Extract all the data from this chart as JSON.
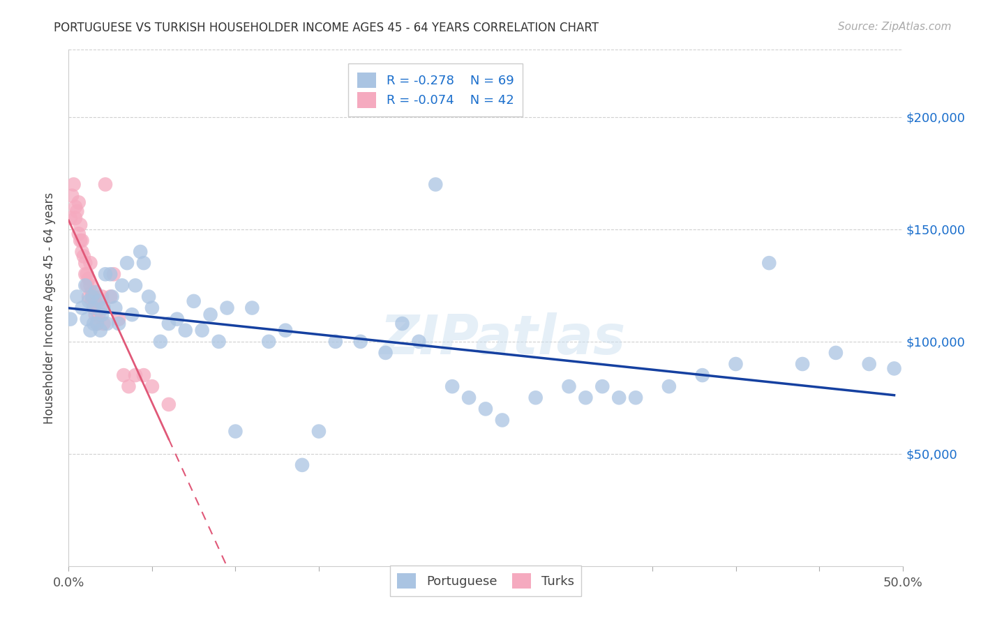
{
  "title": "PORTUGUESE VS TURKISH HOUSEHOLDER INCOME AGES 45 - 64 YEARS CORRELATION CHART",
  "source": "Source: ZipAtlas.com",
  "ylabel": "Householder Income Ages 45 - 64 years",
  "xlim": [
    0.0,
    0.5
  ],
  "ylim": [
    0,
    230000
  ],
  "xticks": [
    0.0,
    0.05,
    0.1,
    0.15,
    0.2,
    0.25,
    0.3,
    0.35,
    0.4,
    0.45,
    0.5
  ],
  "xticklabels": [
    "0.0%",
    "",
    "",
    "",
    "",
    "",
    "",
    "",
    "",
    "",
    "50.0%"
  ],
  "ytick_positions": [
    50000,
    100000,
    150000,
    200000
  ],
  "ytick_labels": [
    "$50,000",
    "$100,000",
    "$150,000",
    "$200,000"
  ],
  "portuguese_color": "#aac4e2",
  "turks_color": "#f5aabf",
  "portuguese_line_color": "#1540a0",
  "turks_line_color": "#e05878",
  "watermark": "ZIPatlas",
  "portuguese_x": [
    0.001,
    0.005,
    0.008,
    0.01,
    0.011,
    0.012,
    0.013,
    0.014,
    0.015,
    0.015,
    0.016,
    0.017,
    0.018,
    0.019,
    0.02,
    0.021,
    0.022,
    0.023,
    0.025,
    0.026,
    0.028,
    0.03,
    0.032,
    0.035,
    0.038,
    0.04,
    0.043,
    0.045,
    0.048,
    0.05,
    0.055,
    0.06,
    0.065,
    0.07,
    0.075,
    0.08,
    0.085,
    0.09,
    0.095,
    0.1,
    0.11,
    0.12,
    0.13,
    0.14,
    0.15,
    0.16,
    0.175,
    0.19,
    0.2,
    0.21,
    0.22,
    0.23,
    0.24,
    0.25,
    0.26,
    0.28,
    0.3,
    0.31,
    0.32,
    0.33,
    0.34,
    0.36,
    0.38,
    0.4,
    0.42,
    0.44,
    0.46,
    0.48,
    0.495
  ],
  "portuguese_y": [
    110000,
    120000,
    115000,
    125000,
    110000,
    118000,
    105000,
    120000,
    115000,
    108000,
    122000,
    108000,
    118000,
    105000,
    112000,
    115000,
    130000,
    108000,
    130000,
    120000,
    115000,
    108000,
    125000,
    135000,
    112000,
    125000,
    140000,
    135000,
    120000,
    115000,
    100000,
    108000,
    110000,
    105000,
    118000,
    105000,
    112000,
    100000,
    115000,
    60000,
    115000,
    100000,
    105000,
    45000,
    60000,
    100000,
    100000,
    95000,
    108000,
    100000,
    170000,
    80000,
    75000,
    70000,
    65000,
    75000,
    80000,
    75000,
    80000,
    75000,
    75000,
    80000,
    85000,
    90000,
    135000,
    90000,
    95000,
    90000,
    88000
  ],
  "turks_x": [
    0.001,
    0.002,
    0.003,
    0.004,
    0.004,
    0.005,
    0.006,
    0.006,
    0.007,
    0.007,
    0.008,
    0.008,
    0.009,
    0.01,
    0.01,
    0.011,
    0.011,
    0.012,
    0.012,
    0.013,
    0.013,
    0.014,
    0.014,
    0.015,
    0.015,
    0.016,
    0.016,
    0.017,
    0.018,
    0.019,
    0.02,
    0.021,
    0.022,
    0.025,
    0.027,
    0.03,
    0.033,
    0.036,
    0.04,
    0.045,
    0.05,
    0.06
  ],
  "turks_y": [
    155000,
    165000,
    170000,
    160000,
    155000,
    158000,
    162000,
    148000,
    145000,
    152000,
    140000,
    145000,
    138000,
    130000,
    135000,
    125000,
    130000,
    128000,
    120000,
    125000,
    135000,
    118000,
    122000,
    115000,
    120000,
    112000,
    118000,
    108000,
    112000,
    115000,
    120000,
    108000,
    170000,
    120000,
    130000,
    110000,
    85000,
    80000,
    85000,
    85000,
    80000,
    72000
  ]
}
